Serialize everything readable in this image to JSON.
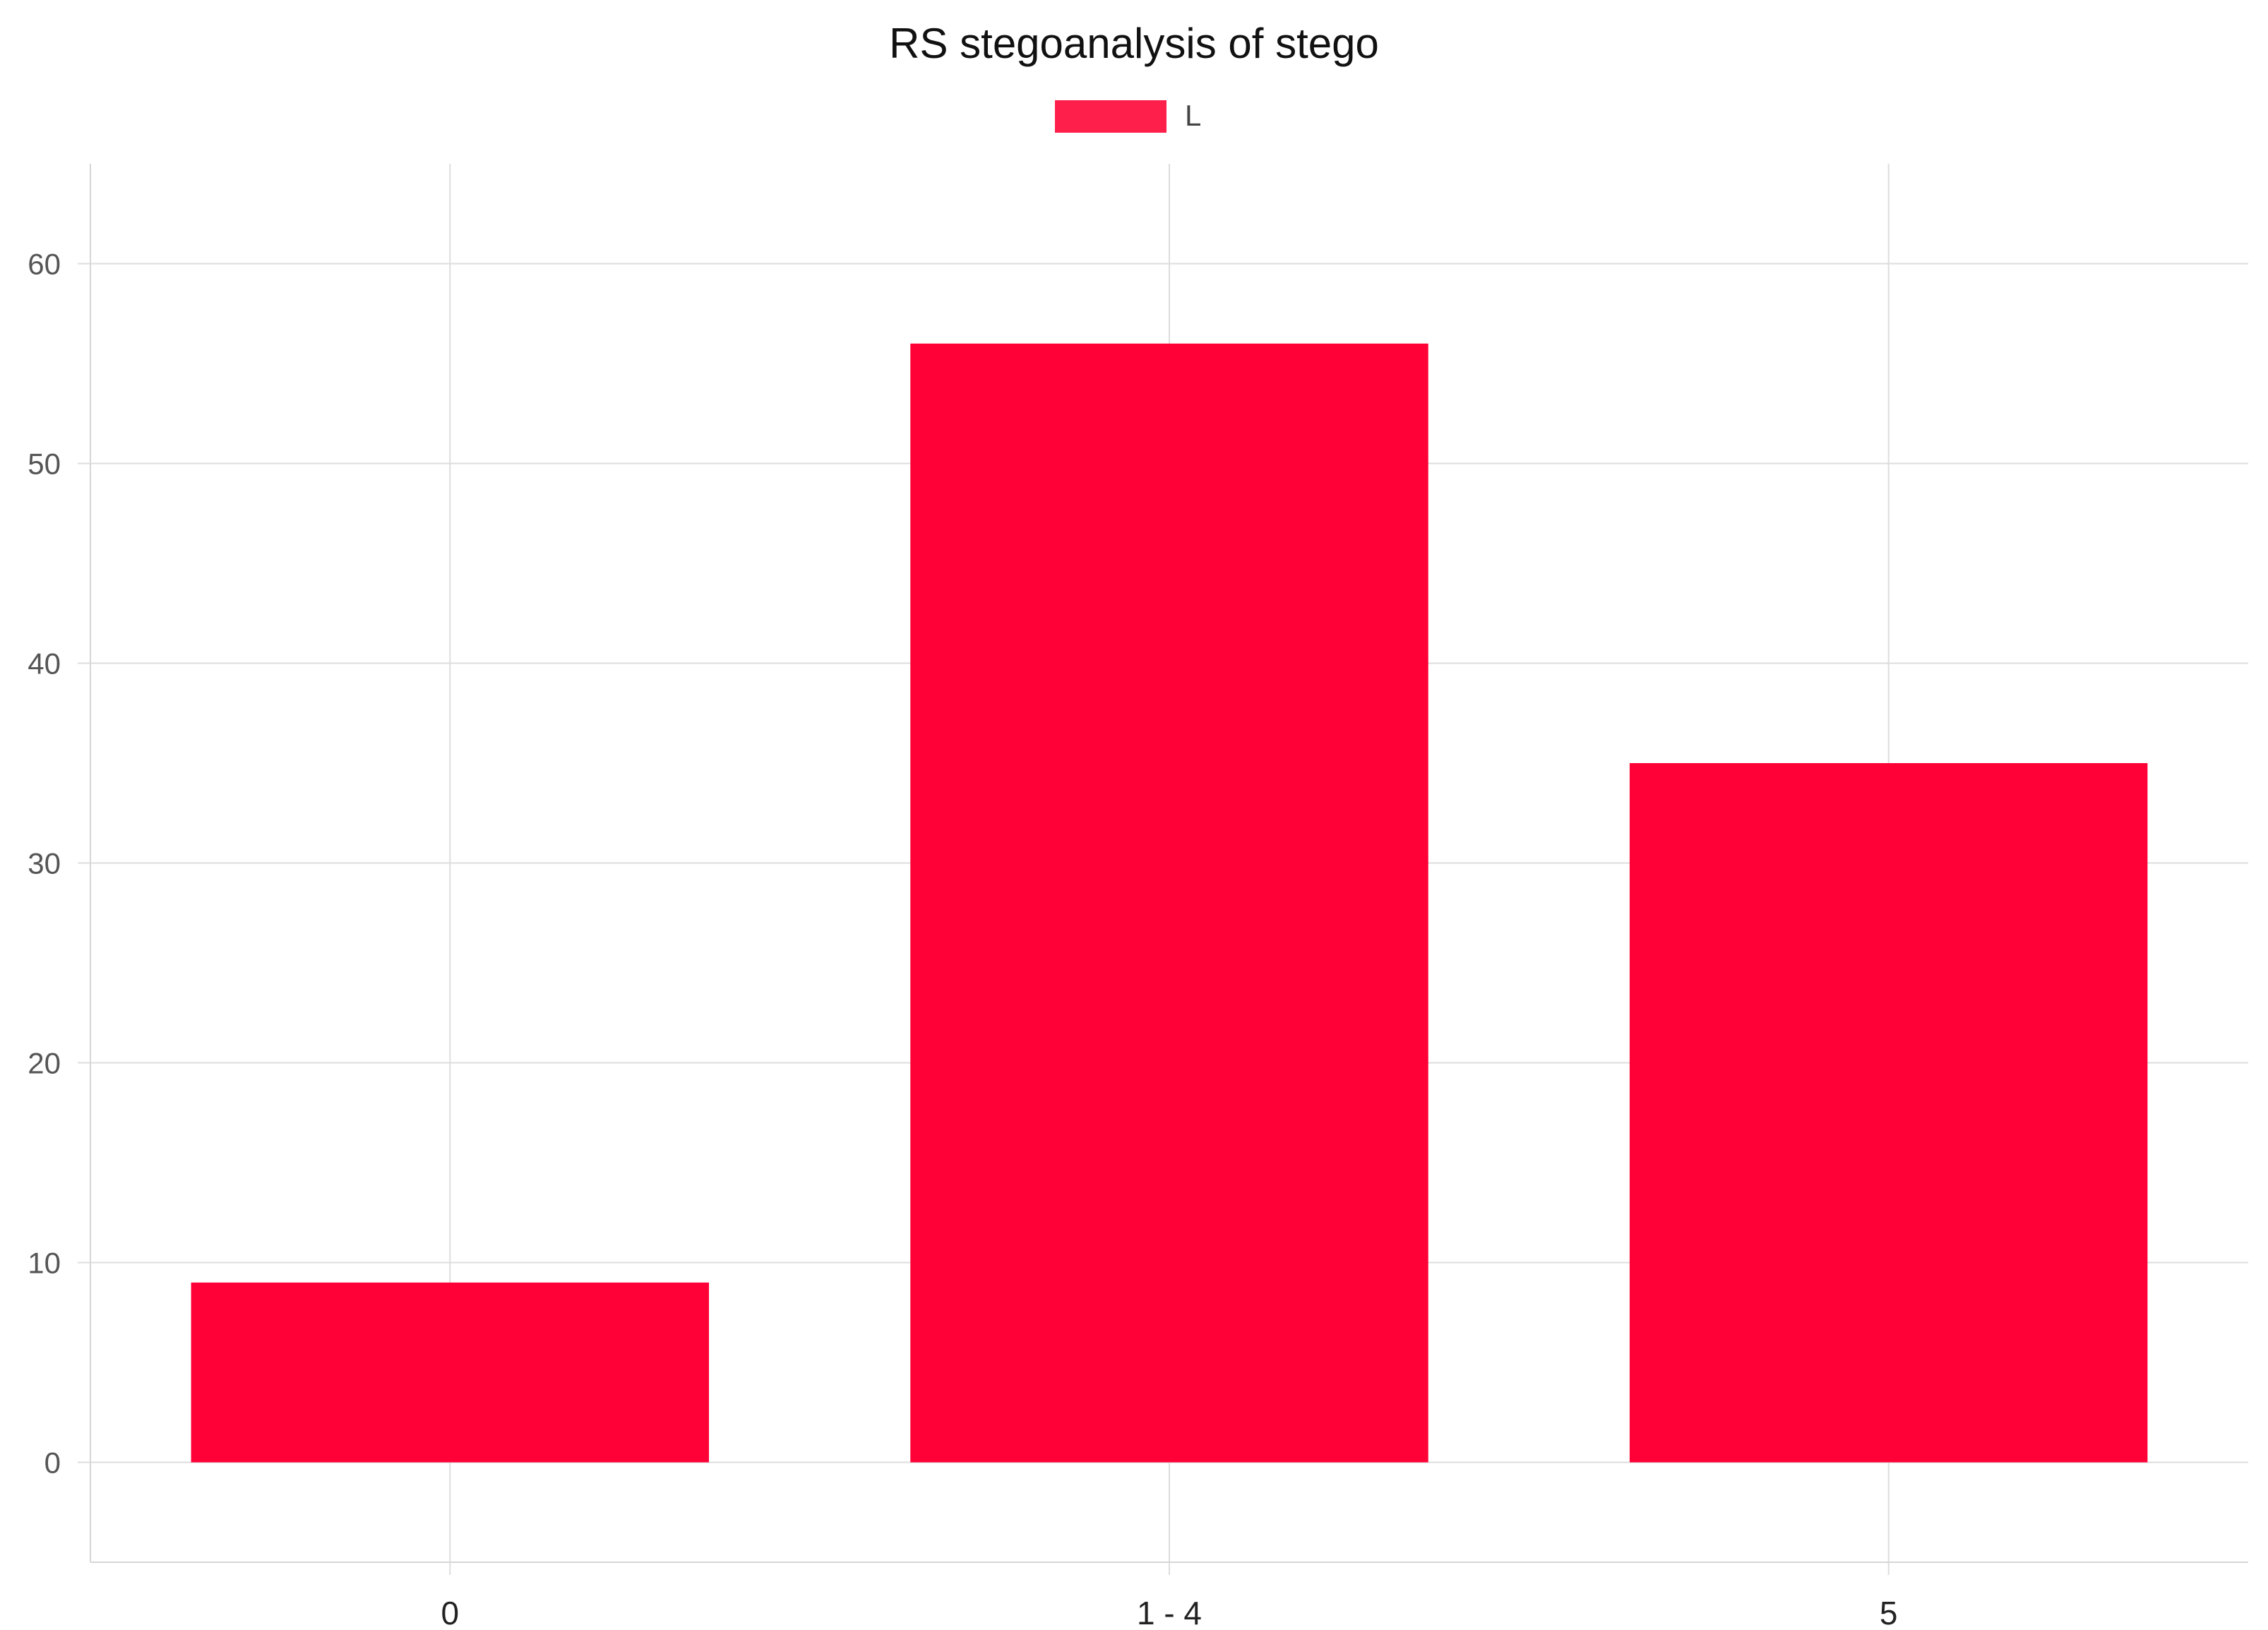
{
  "chart_data": {
    "type": "bar",
    "title": "RS stegoanalysis of stego",
    "categories": [
      "0",
      "1 - 4",
      "5"
    ],
    "series": [
      {
        "name": "L",
        "values": [
          9,
          56,
          35
        ],
        "color": "#ff0037"
      }
    ],
    "legend_color": "#ff1f4b",
    "xlabel": "",
    "ylabel": "",
    "ylim": [
      -5,
      65
    ],
    "yticks": [
      0,
      10,
      20,
      30,
      40,
      50,
      60
    ],
    "grid": true,
    "legend_position": "top-center"
  }
}
